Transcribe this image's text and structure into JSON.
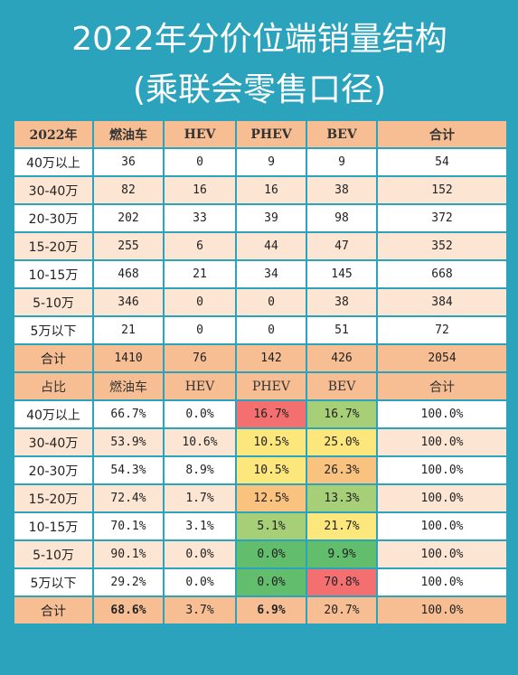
{
  "title_line1": "2022年分价位端销量结构",
  "title_line2": "(乘联会零售口径)",
  "volume_table": {
    "header": [
      "2022年",
      "燃油车",
      "HEV",
      "PHEV",
      "BEV",
      "合计"
    ],
    "rows": [
      [
        "40万以上",
        "36",
        "0",
        "9",
        "9",
        "54"
      ],
      [
        "30-40万",
        "82",
        "16",
        "16",
        "38",
        "152"
      ],
      [
        "20-30万",
        "202",
        "33",
        "39",
        "98",
        "372"
      ],
      [
        "15-20万",
        "255",
        "6",
        "44",
        "47",
        "352"
      ],
      [
        "10-15万",
        "468",
        "21",
        "34",
        "145",
        "668"
      ],
      [
        "5-10万",
        "346",
        "0",
        "0",
        "38",
        "384"
      ],
      [
        "5万以下",
        "21",
        "0",
        "0",
        "51",
        "72"
      ]
    ],
    "total": [
      "合计",
      "1410",
      "76",
      "142",
      "426",
      "2054"
    ]
  },
  "share_table": {
    "header": [
      "占比",
      "燃油车",
      "HEV",
      "PHEV",
      "BEV",
      "合计"
    ],
    "rows": [
      [
        "40万以上",
        "66.7%",
        "0.0%",
        "16.7%",
        "16.7%",
        "100.0%"
      ],
      [
        "30-40万",
        "53.9%",
        "10.6%",
        "10.5%",
        "25.0%",
        "100.0%"
      ],
      [
        "20-30万",
        "54.3%",
        "8.9%",
        "10.5%",
        "26.3%",
        "100.0%"
      ],
      [
        "15-20万",
        "72.4%",
        "1.7%",
        "12.5%",
        "13.3%",
        "100.0%"
      ],
      [
        "10-15万",
        "70.1%",
        "3.1%",
        "5.1%",
        "21.7%",
        "100.0%"
      ],
      [
        "5-10万",
        "90.1%",
        "0.0%",
        "0.0%",
        "9.9%",
        "100.0%"
      ],
      [
        "5万以下",
        "29.2%",
        "0.0%",
        "0.0%",
        "70.8%",
        "100.0%"
      ]
    ],
    "total": [
      "合计",
      "68.6%",
      "3.7%",
      "6.9%",
      "20.7%",
      "100.0%"
    ]
  },
  "colors": {
    "background": "#2ba3bd",
    "header": "#f7be94",
    "row_alt": "#fde5d4",
    "heat_red": "#f47070",
    "heat_yellow": "#fbe77b",
    "heat_green": "#62bd6d"
  }
}
